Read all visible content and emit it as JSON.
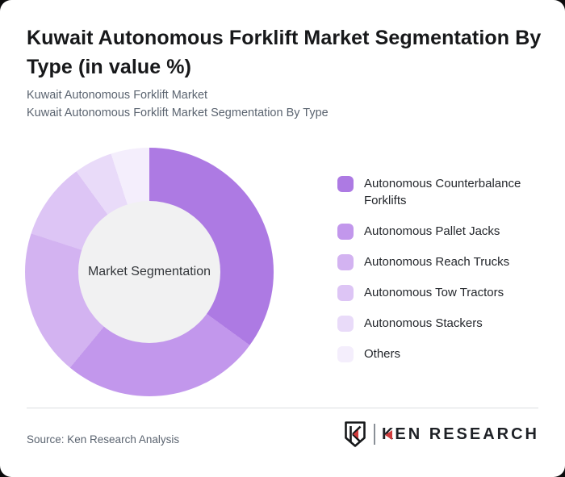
{
  "page": {
    "background_color": "#0b0b0c",
    "card_background": "#ffffff"
  },
  "header": {
    "title": "Kuwait Autonomous Forklift Market Segmentation By Type (in value %)",
    "title_lines": [
      "Kuwait Autonomous Forklift Market Segmentation By",
      "Type (in value %)"
    ],
    "subtitle_lines": [
      "Kuwait Autonomous Forklift Market",
      "Kuwait Autonomous Forklift Market Segmentation By Type"
    ]
  },
  "chart_data": {
    "type": "pie",
    "variant": "donut",
    "title": "Kuwait Autonomous Forklift Market Segmentation By Type (in value %)",
    "center_label": "Market Segmentation",
    "unit": "percent of value",
    "start_angle_deg": 0,
    "direction": "clockwise",
    "legend_position": "right",
    "hole_color": "#f1f1f2",
    "hole_ratio": 0.57,
    "segments": [
      {
        "label": "Autonomous Counterbalance Forklifts",
        "value": 35,
        "color": "#ad7ae3"
      },
      {
        "label": "Autonomous Pallet Jacks",
        "value": 26,
        "color": "#c297ec"
      },
      {
        "label": "Autonomous Reach Trucks",
        "value": 19,
        "color": "#d3b3f1"
      },
      {
        "label": "Autonomous Tow Tractors",
        "value": 10,
        "color": "#ddc5f5"
      },
      {
        "label": "Autonomous Stackers",
        "value": 5,
        "color": "#e9dbf9"
      },
      {
        "label": "Others",
        "value": 5,
        "color": "#f4eefc"
      }
    ]
  },
  "footer": {
    "source": "Source: Ken Research Analysis",
    "logo": {
      "brand": "KEN RESEARCH",
      "wordmark_k": "K",
      "wordmark_rest": "EN RESEARCH",
      "accent_color": "#cf3b3c"
    }
  }
}
